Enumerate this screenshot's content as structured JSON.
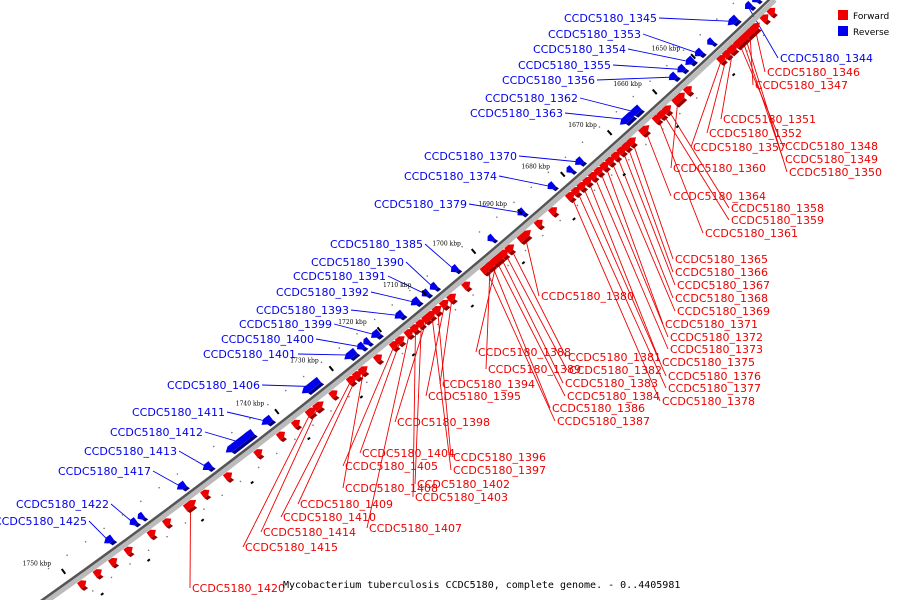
{
  "caption": "Mycobacterium tuberculosis CCDC5180, complete genome. - 0..4405981",
  "legend": [
    {
      "label": "Forward",
      "color": "#ee0000"
    },
    {
      "label": "Reverse",
      "color": "#0000ee"
    }
  ],
  "colors": {
    "forward": "#ee0000",
    "reverse": "#0000ee",
    "axis": "#555555"
  },
  "ticks": [
    "1650 kbp",
    "1660 kbp",
    "1670 kbp",
    "1680 kbp",
    "1690 kbp",
    "1700 kbp",
    "1710 kbp",
    "1720 kbp",
    "1730 kbp",
    "1740 kbp",
    "1750 kbp"
  ],
  "reverse_genes": [
    "CCDC5180_1345",
    "CCDC5180_1353",
    "CCDC5180_1354",
    "CCDC5180_1355",
    "CCDC5180_1356",
    "CCDC5180_1362",
    "CCDC5180_1363",
    "CCDC5180_1370",
    "CCDC5180_1374",
    "CCDC5180_1379",
    "CCDC5180_1385",
    "CCDC5180_1390",
    "CCDC5180_1391",
    "CCDC5180_1392",
    "CCDC5180_1393",
    "CCDC5180_1399",
    "CCDC5180_1400",
    "CCDC5180_1401",
    "CCDC5180_1406",
    "CCDC5180_1411",
    "CCDC5180_1412",
    "CCDC5180_1413",
    "CCDC5180_1417",
    "CCDC5180_1422",
    "CCDC5180_1425",
    "CCDC5180_1344"
  ],
  "forward_genes": [
    "CCDC5180_1346",
    "CCDC5180_1347",
    "CCDC5180_1351",
    "CCDC5180_1352",
    "CCDC5180_1357",
    "CCDC5180_1348",
    "CCDC5180_1349",
    "CCDC5180_1350",
    "CCDC5180_1360",
    "CCDC5180_1364",
    "CCDC5180_1358",
    "CCDC5180_1359",
    "CCDC5180_1361",
    "CCDC5180_1365",
    "CCDC5180_1366",
    "CCDC5180_1367",
    "CCDC5180_1368",
    "CCDC5180_1369",
    "CCDC5180_1380",
    "CCDC5180_1371",
    "CCDC5180_1372",
    "CCDC5180_1373",
    "CCDC5180_1375",
    "CCDC5180_1376",
    "CCDC5180_1377",
    "CCDC5180_1378",
    "CCDC5180_1388",
    "CCDC5180_1381",
    "CCDC5180_1389",
    "CCDC5180_1382",
    "CCDC5180_1383",
    "CCDC5180_1384",
    "CCDC5180_1386",
    "CCDC5180_1387",
    "CCDC5180_1394",
    "CCDC5180_1395",
    "CCDC5180_1398",
    "CCDC5180_1404",
    "CCDC5180_1396",
    "CCDC5180_1405",
    "CCDC5180_1397",
    "CCDC5180_1402",
    "CCDC5180_1408",
    "CCDC5180_1403",
    "CCDC5180_1409",
    "CCDC5180_1410",
    "CCDC5180_1407",
    "CCDC5180_1414",
    "CCDC5180_1415",
    "CCDC5180_1420"
  ]
}
